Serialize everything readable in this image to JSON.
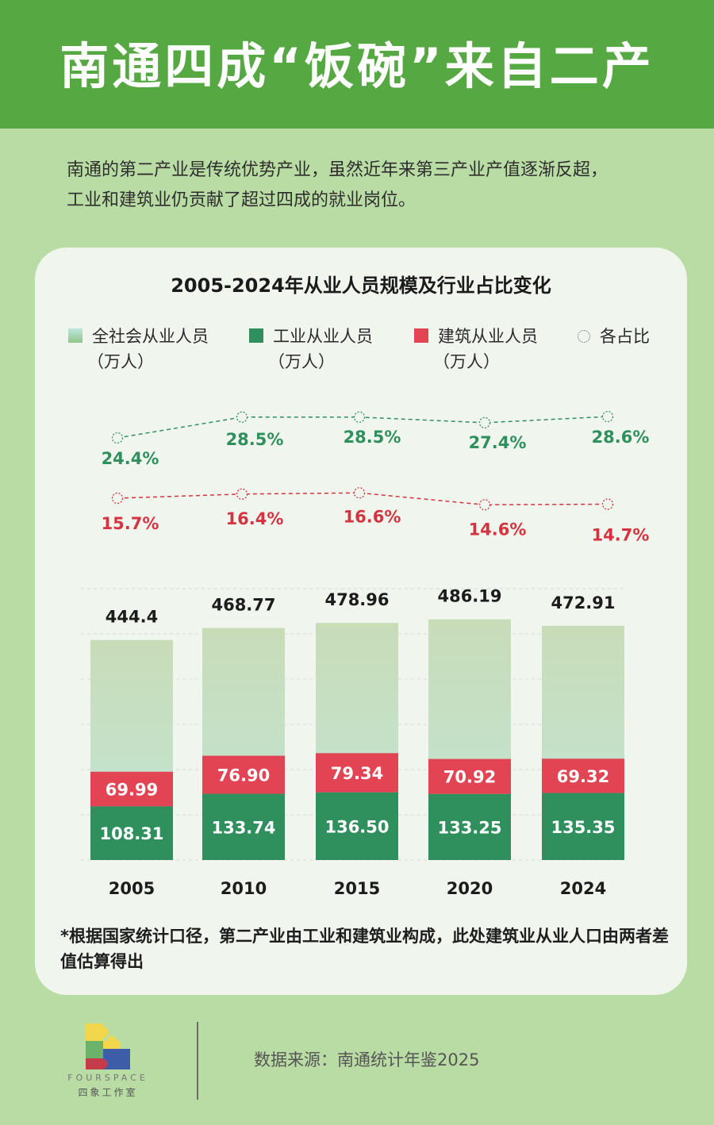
{
  "header": {
    "title": "南通四成“饭碗”来自二产"
  },
  "intro": {
    "line1": "南通的第二产业是传统优势产业，虽然近年来第三产业产值逐渐反超，",
    "line2": "工业和建筑业仍贡献了超过四成的就业岗位。"
  },
  "legend": {
    "total_line1": "全社会从业人员",
    "total_line2": "（万人）",
    "industry_line1": "工业从业人员",
    "industry_line2": "（万人）",
    "construction_line1": "建筑从业人员",
    "construction_line2": "（万人）",
    "ratio": "各占比"
  },
  "colors": {
    "header": "#56a843",
    "industry": "#2f8f5d",
    "construction": "#e24453",
    "total_top": "#c9dcb8",
    "total_bottom": "#bfe6dc",
    "industry_ratio_line": "#2f8f5d",
    "construction_ratio_line": "#d4343f"
  },
  "chart_data": {
    "type": "bar",
    "title": "2005-2024年从业人员规模及行业占比变化",
    "categories": [
      "2005",
      "2010",
      "2015",
      "2020",
      "2024"
    ],
    "series": [
      {
        "name": "全社会从业人员（万人）",
        "values": [
          444.4,
          468.77,
          478.96,
          486.19,
          472.91
        ],
        "labels": [
          "444.4",
          "468.77",
          "478.96",
          "486.19",
          "472.91"
        ]
      },
      {
        "name": "工业从业人员（万人）",
        "values": [
          108.31,
          133.74,
          136.5,
          133.25,
          135.35
        ],
        "labels": [
          "108.31",
          "133.74",
          "136.50",
          "133.25",
          "135.35"
        ]
      },
      {
        "name": "建筑从业人员（万人）",
        "values": [
          69.99,
          76.9,
          79.34,
          70.92,
          69.32
        ],
        "labels": [
          "69.99",
          "76.90",
          "79.34",
          "70.92",
          "69.32"
        ]
      }
    ],
    "ratio_series": [
      {
        "name": "工业占比",
        "values": [
          24.4,
          28.5,
          28.5,
          27.4,
          28.6
        ],
        "labels": [
          "24.4%",
          "28.5%",
          "28.5%",
          "27.4%",
          "28.6%"
        ]
      },
      {
        "name": "建筑占比",
        "values": [
          15.7,
          16.4,
          16.6,
          14.6,
          14.7
        ],
        "labels": [
          "15.7%",
          "16.4%",
          "16.6%",
          "14.6%",
          "14.7%"
        ]
      }
    ],
    "ylim": [
      0,
      520
    ],
    "grid": true
  },
  "footnote": "*根据国家统计口径，第二产业由工业和建筑业构成，此处建筑业从业人口由两者差值估算得出",
  "branding": {
    "logo_text": "FOURSPACE",
    "logo_sub": "四象工作室"
  },
  "source": "数据来源：南通统计年鉴2025"
}
